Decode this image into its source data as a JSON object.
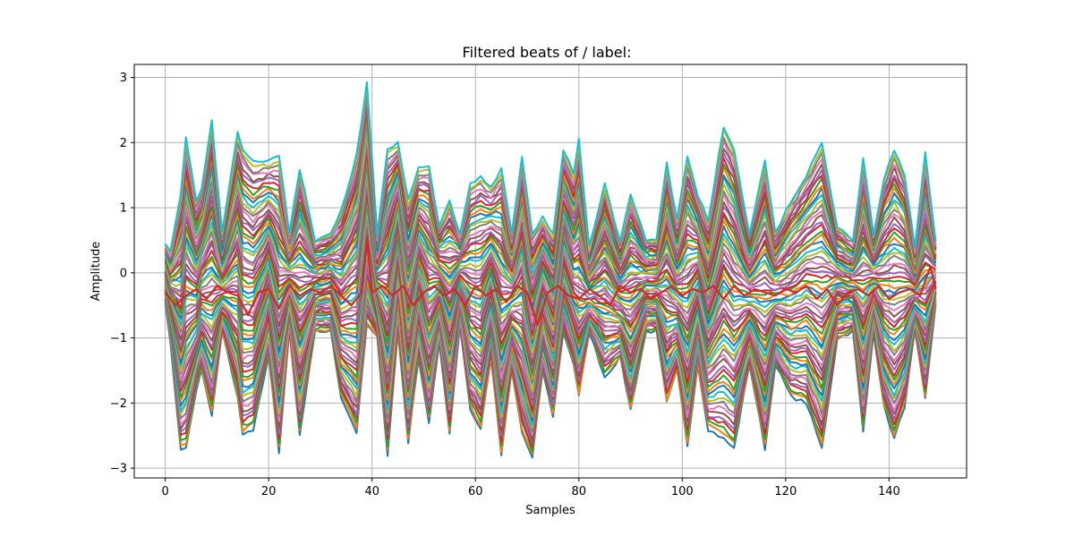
{
  "chart_data": {
    "type": "line",
    "title": "Filtered beats of / label:",
    "xlabel": "Samples",
    "ylabel": "Amplitude",
    "xlim": [
      -6,
      155
    ],
    "ylim": [
      -3.15,
      3.2
    ],
    "xticks": [
      0,
      20,
      40,
      60,
      80,
      100,
      120,
      140
    ],
    "yticks": [
      -3,
      -2,
      -1,
      0,
      1,
      2,
      3
    ],
    "ytick_labels": [
      "−3",
      "−2",
      "−1",
      "0",
      "1",
      "2",
      "3"
    ],
    "grid": true,
    "legend": "none",
    "n_samples": 150,
    "series_palette": [
      "#1f77b4",
      "#ff7f0e",
      "#2ca02c",
      "#d62728",
      "#9467bd",
      "#8c564b",
      "#e377c2",
      "#7f7f7f",
      "#bcbd22",
      "#17becf"
    ],
    "series_count_approx": 60,
    "envelope": {
      "x": [
        0,
        1,
        3,
        4,
        6,
        7,
        9,
        11,
        14,
        15,
        17,
        20,
        22,
        24,
        26,
        29,
        32,
        34,
        37,
        39,
        41,
        43,
        45,
        47,
        49,
        51,
        53,
        55,
        57,
        59,
        61,
        63,
        65,
        67,
        69,
        71,
        73,
        75,
        77,
        79,
        80,
        82,
        85,
        88,
        90,
        93,
        95,
        97,
        99,
        101,
        103,
        105,
        108,
        110,
        113,
        116,
        118,
        121,
        124,
        127,
        130,
        133,
        135,
        137,
        139,
        141,
        143,
        145,
        147,
        149
      ],
      "upper": [
        0.45,
        0.35,
        1.2,
        2.1,
        1.1,
        1.3,
        2.35,
        0.6,
        2.15,
        1.9,
        1.7,
        1.7,
        1.8,
        0.6,
        1.6,
        0.5,
        0.6,
        0.95,
        1.8,
        2.9,
        0.6,
        1.9,
        2.0,
        1.1,
        1.6,
        1.65,
        0.7,
        1.1,
        0.6,
        1.35,
        1.5,
        1.3,
        1.6,
        0.6,
        1.8,
        0.6,
        0.85,
        0.6,
        1.9,
        1.5,
        2.05,
        0.4,
        1.35,
        0.5,
        1.2,
        0.5,
        0.5,
        1.7,
        0.8,
        1.8,
        1.2,
        0.8,
        2.25,
        1.9,
        0.6,
        1.7,
        0.6,
        1.1,
        1.5,
        2.0,
        0.7,
        0.5,
        1.75,
        0.6,
        1.45,
        1.9,
        1.5,
        0.4,
        1.85,
        0.5
      ],
      "lower": [
        -0.45,
        -1.1,
        -2.7,
        -2.7,
        -1.8,
        -1.5,
        -2.2,
        -0.9,
        -1.9,
        -2.5,
        -2.4,
        -1.3,
        -2.75,
        -0.9,
        -2.5,
        -0.9,
        -0.9,
        -1.9,
        -2.45,
        -0.8,
        -1.0,
        -2.8,
        -0.9,
        -2.6,
        -1.3,
        -2.3,
        -1.1,
        -2.45,
        -0.8,
        -2.1,
        -2.4,
        -1.3,
        -2.8,
        -1.5,
        -2.45,
        -2.85,
        -1.5,
        -2.2,
        -0.9,
        -1.4,
        -1.9,
        -0.9,
        -1.6,
        -1.3,
        -2.1,
        -0.9,
        -0.9,
        -2.0,
        -1.5,
        -2.65,
        -1.4,
        -2.4,
        -2.55,
        -2.7,
        -1.4,
        -2.7,
        -1.4,
        -1.9,
        -2.0,
        -2.7,
        -1.0,
        -0.9,
        -2.45,
        -0.9,
        -2.05,
        -2.55,
        -2.05,
        -0.9,
        -1.95,
        -0.5
      ]
    },
    "highlight_trace": {
      "color": "#d62728",
      "x": [
        0,
        2,
        4,
        6,
        8,
        10,
        12,
        14,
        16,
        18,
        20,
        22,
        24,
        26,
        28,
        30,
        32,
        34,
        36,
        38,
        39,
        40,
        42,
        44,
        46,
        48,
        50,
        52,
        54,
        56,
        58,
        60,
        62,
        64,
        66,
        68,
        70,
        72,
        74,
        76,
        78,
        80,
        82,
        84,
        86,
        88,
        90,
        92,
        94,
        96,
        98,
        100,
        102,
        104,
        106,
        108,
        110,
        112,
        114,
        116,
        118,
        120,
        122,
        124,
        126,
        128,
        130,
        132,
        134,
        136,
        138,
        140,
        142,
        144,
        146,
        148,
        149
      ],
      "y": [
        -0.3,
        -0.5,
        -0.35,
        -0.25,
        -0.4,
        -0.2,
        -0.3,
        -0.35,
        -0.65,
        -0.3,
        -0.25,
        -0.55,
        -0.2,
        -0.35,
        -0.25,
        -0.3,
        -0.2,
        -0.35,
        -0.5,
        -0.3,
        0.5,
        -0.3,
        -0.2,
        -0.35,
        -0.2,
        -0.5,
        -0.3,
        -0.2,
        -0.35,
        -0.25,
        -0.5,
        -0.2,
        -0.35,
        -0.25,
        -0.45,
        -0.2,
        -0.3,
        -0.8,
        -0.3,
        -0.2,
        -0.35,
        -0.4,
        -0.25,
        -0.35,
        -0.5,
        -0.2,
        -0.3,
        -0.25,
        -0.4,
        -0.3,
        -0.2,
        -0.35,
        -0.25,
        -0.3,
        -0.2,
        -0.4,
        -0.2,
        -0.35,
        -0.25,
        -0.3,
        -0.35,
        -0.25,
        -0.3,
        -0.2,
        -0.4,
        -0.25,
        -0.5,
        -0.3,
        -0.25,
        -0.35,
        -0.2,
        -0.4,
        -0.3,
        -0.25,
        -0.35,
        0.1,
        -0.25
      ]
    }
  }
}
